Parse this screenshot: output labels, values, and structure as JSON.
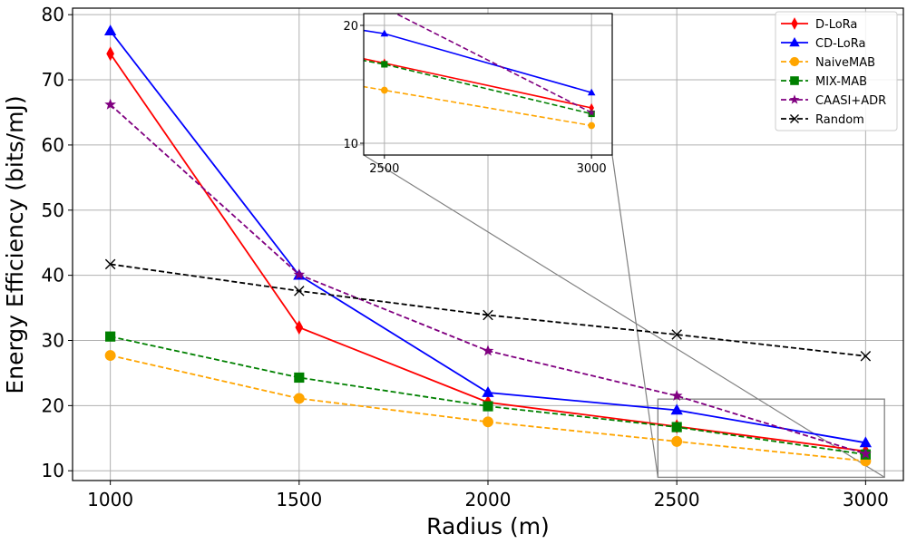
{
  "chart_data": {
    "type": "line",
    "title": "",
    "xlabel": "Radius (m)",
    "ylabel": "Energy Efficiency (bits/mJ)",
    "x": [
      1000,
      1500,
      2000,
      2500,
      3000
    ],
    "xlim": [
      900,
      3100
    ],
    "ylim": [
      8.5,
      81
    ],
    "xticks": [
      1000,
      1500,
      2000,
      2500,
      3000
    ],
    "yticks": [
      10,
      20,
      30,
      40,
      50,
      60,
      70,
      80
    ],
    "grid": true,
    "legend_position": "top-right",
    "series": [
      {
        "name": "D-LoRa",
        "values": [
          74,
          32,
          20.5,
          16.8,
          13
        ],
        "color": "#ff0000",
        "dash": "solid",
        "marker": "diamond"
      },
      {
        "name": "CD-LoRa",
        "values": [
          77.5,
          40,
          22,
          19.3,
          14.3
        ],
        "color": "#0000ff",
        "dash": "solid",
        "marker": "triangle"
      },
      {
        "name": "NaiveMAB",
        "values": [
          27.7,
          21.1,
          17.5,
          14.5,
          11.5
        ],
        "color": "#ffa500",
        "dash": "dashed",
        "marker": "circle"
      },
      {
        "name": "MIX-MAB",
        "values": [
          30.6,
          24.3,
          19.9,
          16.7,
          12.5
        ],
        "color": "#008000",
        "dash": "dashed",
        "marker": "square"
      },
      {
        "name": "CAASI+ADR",
        "values": [
          66.2,
          40.1,
          28.4,
          21.5,
          12.6
        ],
        "color": "#800080",
        "dash": "dashed",
        "marker": "star"
      },
      {
        "name": "Random",
        "values": [
          41.7,
          37.6,
          33.9,
          30.9,
          27.6
        ],
        "color": "#000000",
        "dash": "dashed",
        "marker": "x"
      }
    ],
    "inset": {
      "xlim": [
        2450,
        3050
      ],
      "ylim": [
        9,
        21
      ],
      "xticks": [
        2500,
        3000
      ],
      "yticks": [
        10,
        20
      ]
    }
  }
}
